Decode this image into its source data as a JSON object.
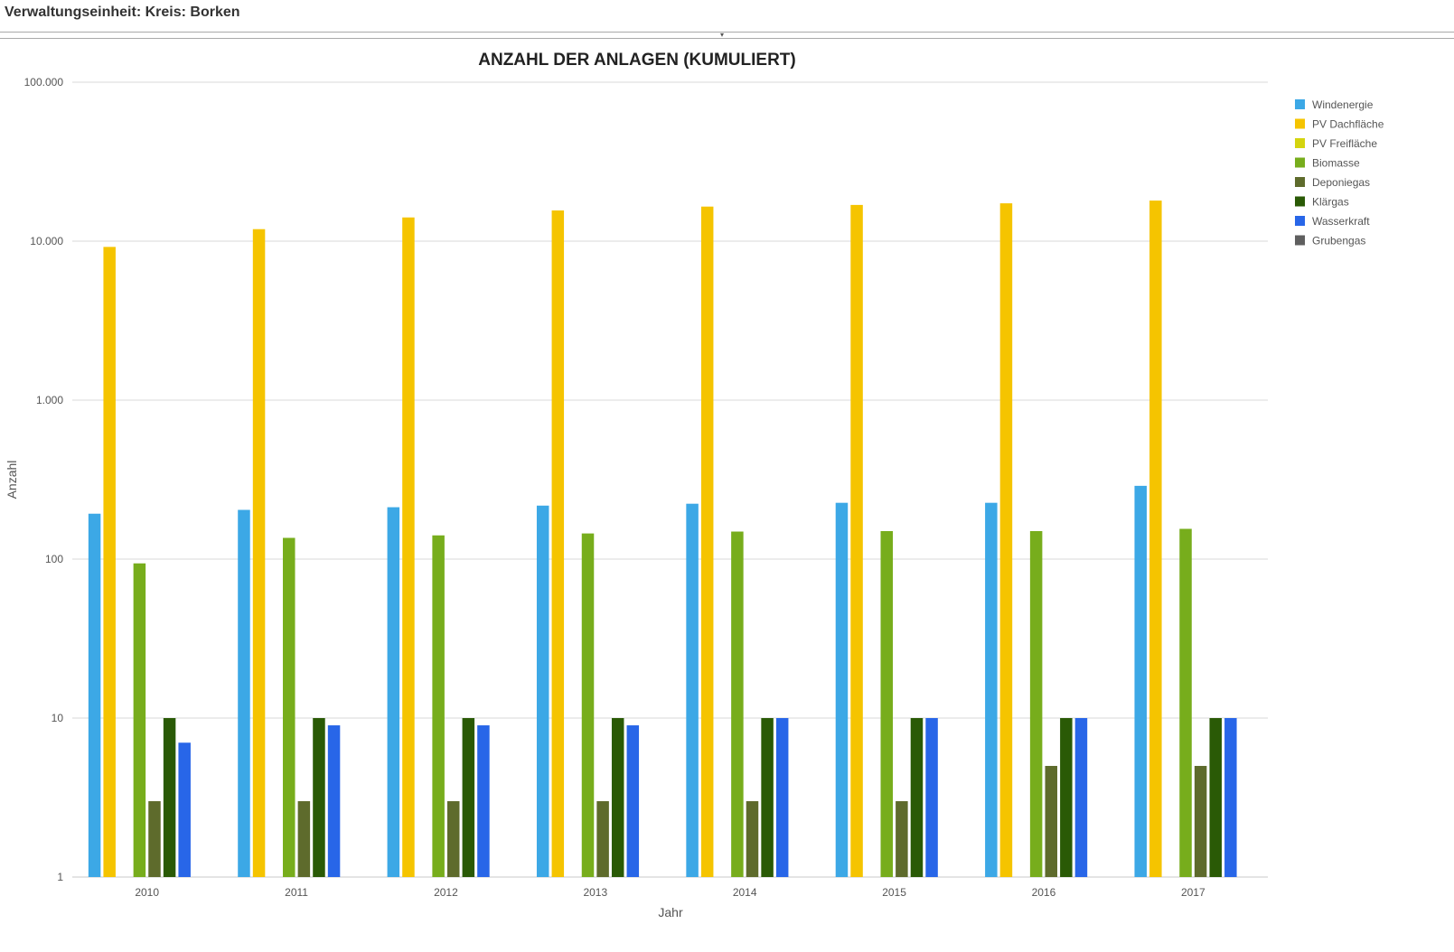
{
  "header": {
    "title": "Verwaltungseinheit: Kreis: Borken"
  },
  "colors": {
    "grid": "#d9d9d9",
    "axis_text": "#555555",
    "title": "#222222"
  },
  "chart_data": {
    "type": "bar",
    "title": "ANZAHL DER ANLAGEN (KUMULIERT)",
    "xlabel": "Jahr",
    "ylabel": "Anzahl",
    "yscale": "log",
    "ylim": [
      1,
      100000
    ],
    "yticks": [
      1,
      10,
      100,
      1000,
      10000,
      100000
    ],
    "ytick_labels": [
      "1",
      "10",
      "100",
      "1.000",
      "10.000",
      "100.000"
    ],
    "grid": true,
    "legend_position": "right",
    "categories": [
      "2010",
      "2011",
      "2012",
      "2013",
      "2014",
      "2015",
      "2016",
      "2017"
    ],
    "series": [
      {
        "name": "Windenergie",
        "color": "#3ca8e6",
        "values": [
          193,
          204,
          212,
          217,
          223,
          226,
          226,
          289
        ]
      },
      {
        "name": "PV Dachfläche",
        "color": "#f5c400",
        "values": [
          9200,
          11900,
          14100,
          15600,
          16500,
          16900,
          17300,
          18000
        ]
      },
      {
        "name": "PV Freifläche",
        "color": "#d4d40f",
        "values": [
          0,
          0,
          0,
          0,
          0,
          0,
          0,
          0
        ]
      },
      {
        "name": "Biomasse",
        "color": "#77ad1c",
        "values": [
          94,
          136,
          141,
          145,
          149,
          150,
          150,
          155
        ]
      },
      {
        "name": "Deponiegas",
        "color": "#5e6b2c",
        "values": [
          3,
          3,
          3,
          3,
          3,
          3,
          5,
          5
        ]
      },
      {
        "name": "Klärgas",
        "color": "#2a5a06",
        "values": [
          10,
          10,
          10,
          10,
          10,
          10,
          10,
          10
        ]
      },
      {
        "name": "Wasserkraft",
        "color": "#2866e8",
        "values": [
          7,
          9,
          9,
          9,
          10,
          10,
          10,
          10
        ]
      },
      {
        "name": "Grubengas",
        "color": "#5f5f5f",
        "values": [
          0,
          0,
          0,
          0,
          0,
          0,
          0,
          0
        ]
      }
    ]
  }
}
